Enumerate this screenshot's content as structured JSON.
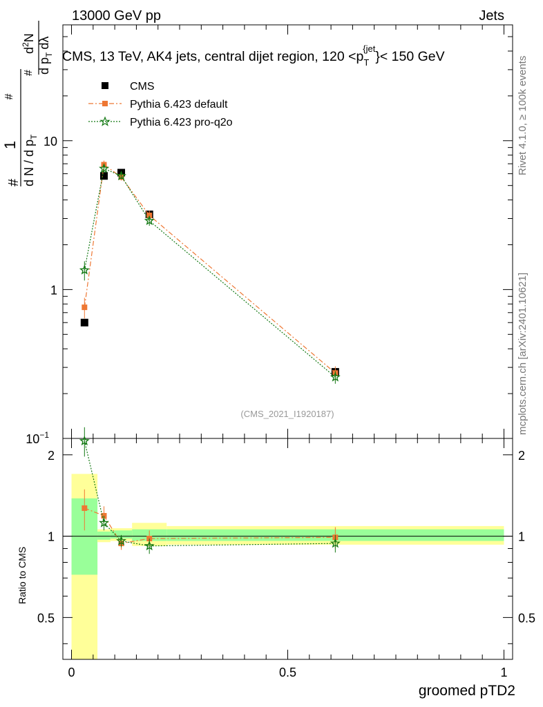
{
  "header": {
    "energy_label": "13000 GeV pp",
    "category_label": "Jets",
    "rivet_label": "Rivet 4.1.0, ≥ 100k events",
    "mcplots_label": "mcplots.cern.ch [arXiv:2401.10621]"
  },
  "chart_data": {
    "type": "line",
    "title": "CMS, 13 TeV, AK4 jets, central dijet region, 120 <p_T^{jet}< 150 GeV",
    "title_parts": {
      "main": "CMS, 13 TeV, AK4 jets, central dijet region, 120 <p",
      "sub": "T",
      "sup": "{jet",
      "tail": "}< 150 GeV"
    },
    "analysis_id": "(CMS_2021_I1920187)",
    "xlabel": "groomed pTD2",
    "ylabel": "(1/N) dN/dλ",
    "ylabel_parts": {
      "lead": "1",
      "frac_num": "#",
      "frac_den": "d N / d p",
      "frac_den_sub": "T",
      "inner_num": "#",
      "inner_num2": "d",
      "inner_num2_sup": "2",
      "inner_num3": "N",
      "inner_den": "d p",
      "inner_den_sub": "T",
      "inner_den2": "dλ",
      "hash": "#"
    },
    "ratio_ylabel": "Ratio to CMS",
    "xlim": [
      -0.02,
      1.02
    ],
    "ylim": [
      0.1,
      60
    ],
    "yscale": "log",
    "ratio_ylim": [
      0.35,
      2.3
    ],
    "x_ticks": [
      {
        "value": 0,
        "label": "0"
      },
      {
        "value": 0.5,
        "label": "0.5"
      },
      {
        "value": 1,
        "label": "1"
      }
    ],
    "y_ticks": [
      {
        "value": 10,
        "label": "10"
      },
      {
        "value": 1,
        "label": "1"
      },
      {
        "value": 0.1,
        "label": "10",
        "exp": "−1"
      }
    ],
    "ratio_ticks": [
      {
        "value": 2,
        "label": "2"
      },
      {
        "value": 1,
        "label": "1"
      },
      {
        "value": 0.5,
        "label": "0.5"
      }
    ],
    "legend_position": "top-left",
    "series": [
      {
        "name": "CMS",
        "color": "#000000",
        "marker": "square",
        "x": [
          0.03,
          0.075,
          0.115,
          0.18,
          0.61
        ],
        "values": [
          0.6,
          5.8,
          6.1,
          3.2,
          0.28
        ],
        "ratio": [
          1,
          1,
          1,
          1,
          1
        ]
      },
      {
        "name": "Pythia 6.423 default",
        "color": "#ee7733",
        "marker": "circle-square",
        "dash": "7,3,2,3",
        "x": [
          0.03,
          0.075,
          0.115,
          0.18,
          0.61
        ],
        "values": [
          0.76,
          6.9,
          5.7,
          3.15,
          0.275
        ],
        "errors": [
          0.12,
          0.45,
          0.3,
          0.25,
          0.03
        ],
        "ratio": [
          1.27,
          1.19,
          0.94,
          0.98,
          0.99
        ],
        "ratio_errors": [
          0.22,
          0.1,
          0.05,
          0.07,
          0.09
        ]
      },
      {
        "name": "Pythia 6.423 pro-q2o",
        "color": "#117711",
        "marker": "star",
        "dash": "2,2",
        "x": [
          0.03,
          0.075,
          0.115,
          0.18,
          0.61
        ],
        "values": [
          1.35,
          6.5,
          5.8,
          2.9,
          0.258
        ],
        "errors": [
          0.2,
          0.4,
          0.3,
          0.22,
          0.025
        ],
        "ratio": [
          2.25,
          1.12,
          0.96,
          0.92,
          0.94
        ],
        "ratio_errors": [
          0.28,
          0.07,
          0.05,
          0.06,
          0.07
        ]
      }
    ],
    "uncertainty_bands": [
      {
        "x": [
          0.0,
          0.06
        ],
        "inner": [
          0.72,
          1.38
        ],
        "outer": [
          0.3,
          1.7
        ]
      },
      {
        "x": [
          0.06,
          0.09
        ],
        "inner": [
          0.97,
          1.04
        ],
        "outer": [
          0.95,
          1.06
        ]
      },
      {
        "x": [
          0.09,
          0.14
        ],
        "inner": [
          0.98,
          1.05
        ],
        "outer": [
          0.96,
          1.07
        ]
      },
      {
        "x": [
          0.14,
          0.22
        ],
        "inner": [
          0.96,
          1.06
        ],
        "outer": [
          0.92,
          1.12
        ]
      },
      {
        "x": [
          0.22,
          1.0
        ],
        "inner": [
          0.96,
          1.06
        ],
        "outer": [
          0.93,
          1.09
        ]
      }
    ],
    "band_colors": {
      "inner": "#99ff99",
      "outer": "#ffff99"
    }
  }
}
